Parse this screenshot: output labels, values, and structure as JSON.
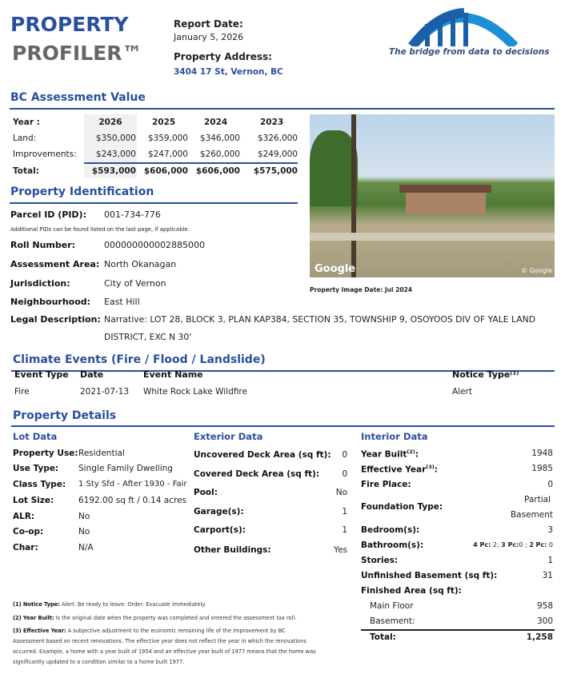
{
  "header": {
    "title_line1": "PROPERTY",
    "title_line2": "PROFILER™",
    "report_date_label": "Report Date:",
    "report_date": "January 5, 2026",
    "address_label": "Property Address:",
    "address": "3404 17 St, Vernon, BC",
    "logo_tagline": "The bridge from data to decisions"
  },
  "assessment": {
    "heading": "BC Assessment Value",
    "year_label": "Year :",
    "years": [
      "2026",
      "2025",
      "2024",
      "2023"
    ],
    "rows": [
      {
        "label": "Land:",
        "values": [
          "$350,000",
          "$359,000",
          "$346,000",
          "$326,000"
        ]
      },
      {
        "label": "Improvements:",
        "values": [
          "$243,000",
          "$247,000",
          "$260,000",
          "$249,000"
        ]
      },
      {
        "label": "Total:",
        "values": [
          "$593,000",
          "$606,000",
          "$606,000",
          "$575,000"
        ]
      }
    ]
  },
  "photo": {
    "watermark_left": "Google",
    "watermark_right": "© Google",
    "caption": "Property Image Date: Jul 2024"
  },
  "identification": {
    "heading": "Property Identification",
    "pid_label": "Parcel ID (PID):",
    "pid": "001-734-776",
    "pid_note": "Additional PIDs can be found listed on the last page, if applicable.",
    "roll_label": "Roll Number:",
    "roll": "000000000002885000",
    "area_label": "Assessment Area:",
    "area": "North Okanagan",
    "jurisdiction_label": "Jurisdiction:",
    "jurisdiction": "City of Vernon",
    "neighbourhood_label": "Neighbourhood:",
    "neighbourhood": "East Hill",
    "legal_label": "Legal Description:",
    "legal_line1": "Narrative: LOT 28, BLOCK 3, PLAN KAP384, SECTION 35, TOWNSHIP 9, OSOYOOS DIV OF YALE LAND",
    "legal_line2": "DISTRICT, EXC N 30'"
  },
  "climate": {
    "heading": "Climate Events (Fire / Flood / Landslide)",
    "columns": [
      "Event Type",
      "Date",
      "Event Name",
      "Notice Type⁽¹⁾"
    ],
    "rows": [
      [
        "Fire",
        "2021-07-13",
        "White Rock Lake Wildfire",
        "Alert"
      ]
    ]
  },
  "details": {
    "heading": "Property Details",
    "lot": {
      "heading": "Lot Data",
      "items": [
        {
          "label": "Property Use:",
          "value": "Residential"
        },
        {
          "label": "Use Type:",
          "value": "Single Family Dwelling"
        },
        {
          "label": "Class Type:",
          "value": "1 Sty Sfd - After 1930 - Fair"
        },
        {
          "label": "Lot Size:",
          "value": "6192.00 sq ft / 0.14 acres"
        },
        {
          "label": "ALR:",
          "value": "No"
        },
        {
          "label": "Co-op:",
          "value": "No"
        },
        {
          "label": "Char:",
          "value": "N/A"
        }
      ]
    },
    "exterior": {
      "heading": "Exterior Data",
      "items": [
        {
          "label": "Uncovered Deck Area (sq ft):",
          "value": "0"
        },
        {
          "label": "Covered Deck Area (sq ft):",
          "value": "0"
        },
        {
          "label": "Pool:",
          "value": "No"
        },
        {
          "label": "Garage(s):",
          "value": "1"
        },
        {
          "label": "Carport(s):",
          "value": "1"
        },
        {
          "label": "Other Buildings:",
          "value": "Yes"
        }
      ]
    },
    "interior": {
      "heading": "Interior Data",
      "year_built_label": "Year Built",
      "year_built_sup": "(2)",
      "year_built": "1948",
      "effective_year_label": "Effective Year",
      "effective_year_sup": "(3)",
      "effective_year": "1985",
      "fireplace_label": "Fire Place:",
      "fireplace": "0",
      "foundation_label": "Foundation Type:",
      "foundation_line1": "Partial",
      "foundation_line2": "Basement",
      "bedrooms_label": "Bedroom(s):",
      "bedrooms": "3",
      "bathrooms_label": "Bathroom(s):",
      "bath_4pc_label": "4 Pc:",
      "bath_4pc": "2;",
      "bath_3pc_label": "3 Pc:",
      "bath_3pc": "0 ;",
      "bath_2pc_label": "2 Pc:",
      "bath_2pc": "0",
      "stories_label": "Stories:",
      "stories": "1",
      "unfinished_label": "Unfinished Basement (sq ft):",
      "unfinished": "31",
      "finished_label": "Finished Area (sq ft):",
      "main_floor_label": "Main Floor",
      "main_floor": "958",
      "basement_label": "Basement:",
      "basement": "300",
      "total_label": "Total:",
      "total": "1,258"
    }
  },
  "footnotes": {
    "n1_label": "(1) Notice Type:",
    "n1": "Alert: Be ready to leave. Order: Evacuate immediately.",
    "n2_label": "(2) Year Built:",
    "n2": "Is the original date when the property was completed and entered the assessment tax roll.",
    "n3_label": "(3) Effective Year:",
    "n3_line1": "A subjective adjustment to the economic remaining life of the improvement by BC",
    "n3_line2": "Assessment based on recent renovations. The effective year does not reflect the year in which the renovations",
    "n3_line3": "occurred. Example, a home with a year built of 1954 and an effective year built of 1977 means that the home was",
    "n3_line4": "significantly updated to a condition similar to a home built 1977."
  },
  "colors": {
    "accent": "#2a4fa0",
    "title_gray": "#666666",
    "logo_blue": "#1e8fd6"
  }
}
